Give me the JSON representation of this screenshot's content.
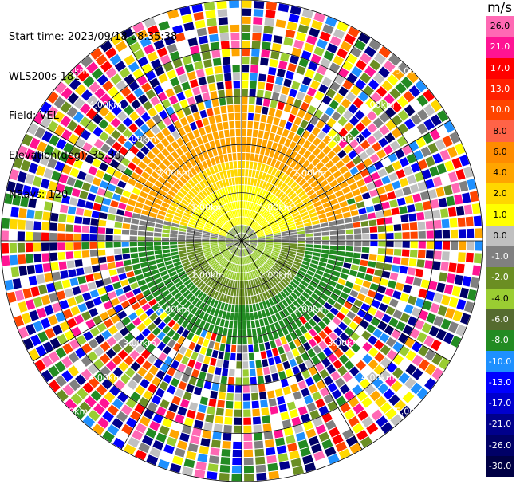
{
  "info": {
    "start_time": "Start time: 2023/09/18 08:35:38",
    "instrument": "WLS200s-181",
    "field": "Field: VEL",
    "elevation": "Elevation(deg): 35.30",
    "nrays": "NRays: 120"
  },
  "colorbar": {
    "unit": "m/s",
    "levels": [
      "26.0",
      "21.0",
      "17.0",
      "13.0",
      "10.0",
      "8.0",
      "6.0",
      "4.0",
      "2.0",
      "1.0",
      "0.0",
      "-1.0",
      "-2.0",
      "-4.0",
      "-6.0",
      "-8.0",
      "-10.0",
      "-13.0",
      "-17.0",
      "-21.0",
      "-26.0",
      "-30.0"
    ],
    "colors": [
      "#ff69b4",
      "#ff1493",
      "#ff0000",
      "#ff2000",
      "#ff4500",
      "#ff6347",
      "#ff8c00",
      "#ffa500",
      "#ffd700",
      "#ffff00",
      "#c0c0c0",
      "#808080",
      "#6b8e23",
      "#9acd32",
      "#556b2f",
      "#228b22",
      "#1e90ff",
      "#0000ff",
      "#0000cd",
      "#00008b",
      "#000066",
      "#000044"
    ]
  },
  "range_rings": {
    "labels": [
      "1.00km",
      "2.00km",
      "3.00km",
      "4.00km",
      "5.00km"
    ]
  },
  "ppi": {
    "nrays": 120,
    "ngates": 30,
    "max_range_km": 5.0
  }
}
